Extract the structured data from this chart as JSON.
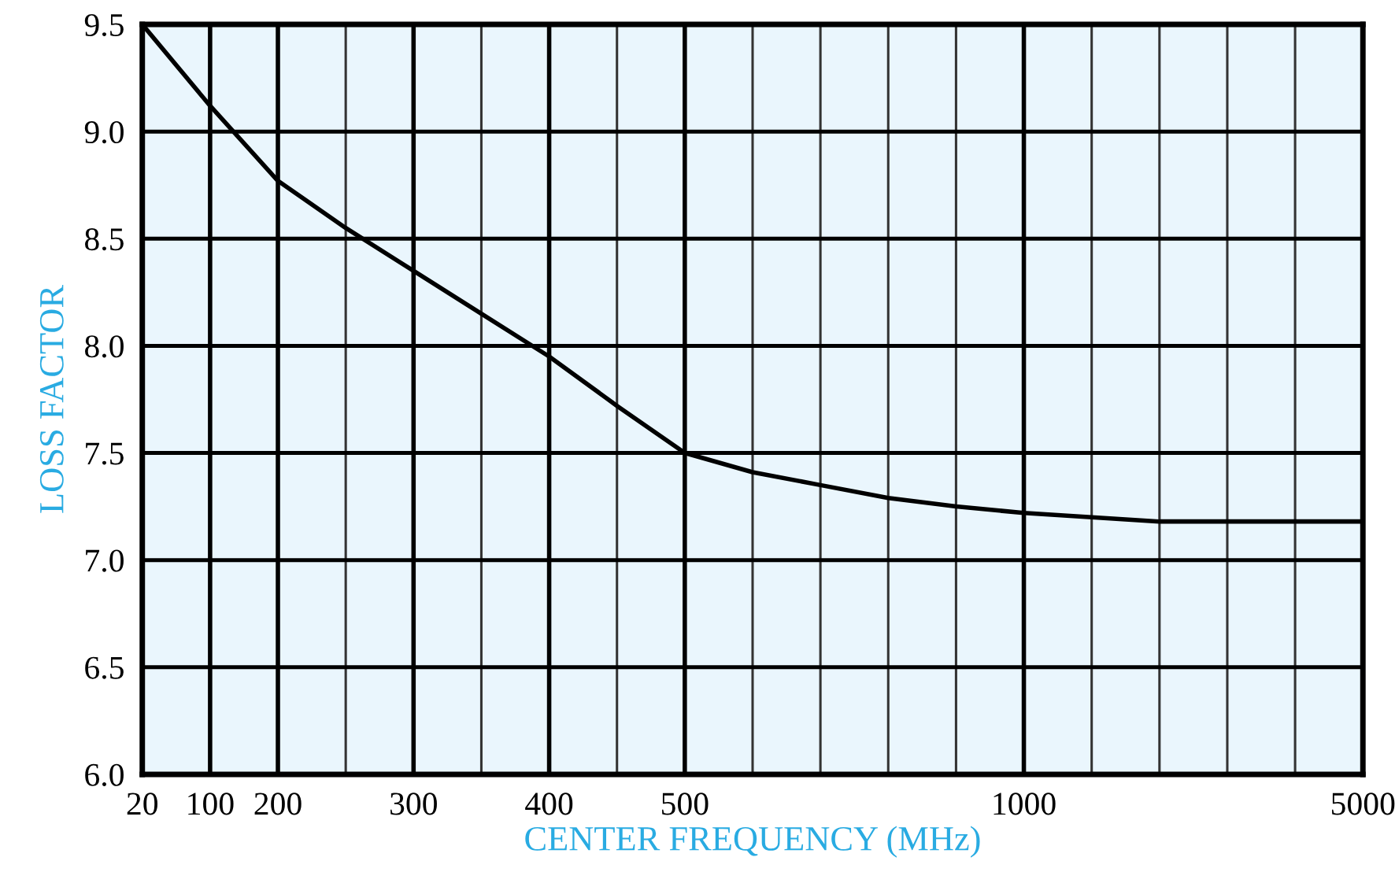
{
  "chart_data": {
    "type": "line",
    "xlabel": "CENTER FREQUENCY (MHz)",
    "ylabel": "LOSS FACTOR",
    "categories": [
      "20",
      "100",
      "200",
      null,
      "300",
      null,
      "400",
      null,
      "500",
      null,
      null,
      null,
      null,
      "1000",
      null,
      null,
      null,
      null,
      "5000"
    ],
    "series": [
      {
        "color": "#000000",
        "values": [
          9.5,
          9.12,
          8.77,
          8.55,
          8.35,
          8.15,
          7.95,
          7.72,
          7.5,
          7.41,
          7.35,
          7.29,
          7.25,
          7.22,
          7.2,
          7.18,
          7.18,
          7.18,
          7.18
        ]
      }
    ],
    "ylim": [
      6.0,
      9.5
    ],
    "yticks": [
      {
        "value": 6.0,
        "label": "6.0"
      },
      6.5,
      {
        "value": 7.0,
        "label": "7.0"
      },
      7.5,
      {
        "value": 8.0,
        "label": "8.0"
      },
      8.5,
      {
        "value": 9.0,
        "label": "9.0"
      },
      9.5
    ],
    "grid": true,
    "marker": "none",
    "line_style": "solid"
  }
}
